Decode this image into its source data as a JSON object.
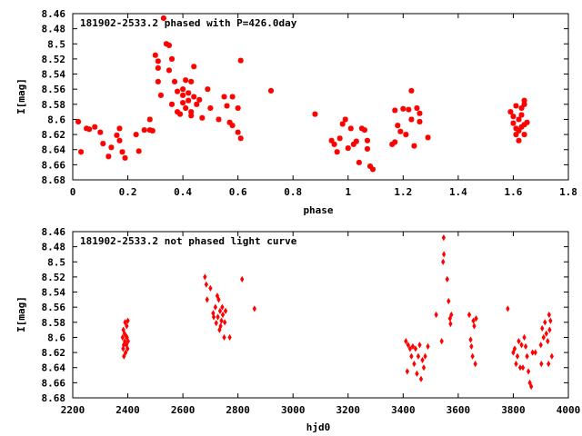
{
  "chart_data": [
    {
      "type": "scatter",
      "title": "181902-2533.2 phased with P=426.0day",
      "xlabel": "phase",
      "ylabel": "I[mag]",
      "xlim": [
        0,
        1.8
      ],
      "ylim": [
        8.46,
        8.68
      ],
      "y_inverted": true,
      "xticks": [
        "0",
        "0.2",
        "0.4",
        "0.6",
        "0.8",
        "1",
        "1.2",
        "1.4",
        "1.6",
        "1.8"
      ],
      "yticks": [
        "8.46",
        "8.48",
        "8.5",
        "8.52",
        "8.54",
        "8.56",
        "8.58",
        "8.6",
        "8.62",
        "8.64",
        "8.66",
        "8.68"
      ],
      "marker_color": "#ff0000",
      "marker": "star",
      "grid": false,
      "points": [
        [
          0.02,
          8.603
        ],
        [
          0.03,
          8.643
        ],
        [
          0.05,
          8.612
        ],
        [
          0.06,
          8.613
        ],
        [
          0.08,
          8.61
        ],
        [
          0.1,
          8.617
        ],
        [
          0.11,
          8.632
        ],
        [
          0.13,
          8.649
        ],
        [
          0.14,
          8.637
        ],
        [
          0.16,
          8.621
        ],
        [
          0.17,
          8.628
        ],
        [
          0.17,
          8.612
        ],
        [
          0.18,
          8.643
        ],
        [
          0.19,
          8.651
        ],
        [
          0.23,
          8.62
        ],
        [
          0.24,
          8.642
        ],
        [
          0.26,
          8.614
        ],
        [
          0.28,
          8.6
        ],
        [
          0.28,
          8.614
        ],
        [
          0.29,
          8.615
        ],
        [
          0.3,
          8.515
        ],
        [
          0.31,
          8.523
        ],
        [
          0.31,
          8.532
        ],
        [
          0.31,
          8.55
        ],
        [
          0.32,
          8.568
        ],
        [
          0.33,
          8.466
        ],
        [
          0.34,
          8.5
        ],
        [
          0.35,
          8.502
        ],
        [
          0.35,
          8.535
        ],
        [
          0.36,
          8.52
        ],
        [
          0.36,
          8.58
        ],
        [
          0.37,
          8.55
        ],
        [
          0.38,
          8.563
        ],
        [
          0.38,
          8.59
        ],
        [
          0.39,
          8.593
        ],
        [
          0.4,
          8.56
        ],
        [
          0.4,
          8.568
        ],
        [
          0.4,
          8.578
        ],
        [
          0.41,
          8.585
        ],
        [
          0.41,
          8.548
        ],
        [
          0.42,
          8.565
        ],
        [
          0.42,
          8.575
        ],
        [
          0.43,
          8.59
        ],
        [
          0.43,
          8.595
        ],
        [
          0.43,
          8.55
        ],
        [
          0.44,
          8.53
        ],
        [
          0.44,
          8.57
        ],
        [
          0.45,
          8.58
        ],
        [
          0.46,
          8.574
        ],
        [
          0.47,
          8.598
        ],
        [
          0.49,
          8.56
        ],
        [
          0.5,
          8.585
        ],
        [
          0.53,
          8.6
        ],
        [
          0.55,
          8.57
        ],
        [
          0.56,
          8.582
        ],
        [
          0.57,
          8.604
        ],
        [
          0.58,
          8.608
        ],
        [
          0.58,
          8.57
        ],
        [
          0.6,
          8.585
        ],
        [
          0.6,
          8.617
        ],
        [
          0.61,
          8.625
        ],
        [
          0.61,
          8.522
        ],
        [
          0.72,
          8.562
        ],
        [
          0.88,
          8.593
        ],
        [
          0.94,
          8.628
        ],
        [
          0.95,
          8.633
        ],
        [
          0.96,
          8.643
        ],
        [
          0.97,
          8.625
        ],
        [
          0.98,
          8.606
        ],
        [
          0.99,
          8.6
        ],
        [
          1,
          8.638
        ],
        [
          1.01,
          8.612
        ],
        [
          1.02,
          8.633
        ],
        [
          1.03,
          8.629
        ],
        [
          1.04,
          8.657
        ],
        [
          1.05,
          8.612
        ],
        [
          1.06,
          8.614
        ],
        [
          1.07,
          8.628
        ],
        [
          1.07,
          8.639
        ],
        [
          1.08,
          8.662
        ],
        [
          1.09,
          8.666
        ],
        [
          1.16,
          8.633
        ],
        [
          1.17,
          8.63
        ],
        [
          1.17,
          8.588
        ],
        [
          1.18,
          8.608
        ],
        [
          1.19,
          8.616
        ],
        [
          1.2,
          8.586
        ],
        [
          1.21,
          8.62
        ],
        [
          1.22,
          8.587
        ],
        [
          1.23,
          8.6
        ],
        [
          1.23,
          8.562
        ],
        [
          1.24,
          8.635
        ],
        [
          1.25,
          8.585
        ],
        [
          1.26,
          8.592
        ],
        [
          1.26,
          8.603
        ],
        [
          1.29,
          8.624
        ],
        [
          1.59,
          8.59
        ],
        [
          1.6,
          8.596
        ],
        [
          1.6,
          8.605
        ],
        [
          1.61,
          8.612
        ],
        [
          1.61,
          8.62
        ],
        [
          1.61,
          8.582
        ],
        [
          1.62,
          8.6
        ],
        [
          1.62,
          8.628
        ],
        [
          1.63,
          8.594
        ],
        [
          1.63,
          8.585
        ],
        [
          1.63,
          8.61
        ],
        [
          1.64,
          8.607
        ],
        [
          1.64,
          8.58
        ],
        [
          1.64,
          8.575
        ],
        [
          1.64,
          8.62
        ],
        [
          1.65,
          8.604
        ],
        [
          1.62,
          8.615
        ]
      ]
    },
    {
      "type": "scatter",
      "title": "181902-2533.2 not phased light curve",
      "xlabel": "hjd0",
      "ylabel": "I[mag]",
      "xlim": [
        2200,
        4000
      ],
      "ylim": [
        8.46,
        8.68
      ],
      "y_inverted": true,
      "xticks": [
        "2200",
        "2400",
        "2600",
        "2800",
        "3000",
        "3200",
        "3400",
        "3600",
        "3800",
        "4000"
      ],
      "yticks": [
        "8.46",
        "8.48",
        "8.5",
        "8.52",
        "8.54",
        "8.56",
        "8.58",
        "8.6",
        "8.62",
        "8.64",
        "8.66",
        "8.68"
      ],
      "marker_color": "#ff0000",
      "marker": "diamond",
      "grid": false,
      "points": [
        [
          2381,
          8.6
        ],
        [
          2383,
          8.615
        ],
        [
          2384,
          8.59
        ],
        [
          2385,
          8.61
        ],
        [
          2386,
          8.625
        ],
        [
          2388,
          8.595
        ],
        [
          2389,
          8.605
        ],
        [
          2390,
          8.58
        ],
        [
          2392,
          8.62
        ],
        [
          2393,
          8.598
        ],
        [
          2395,
          8.61
        ],
        [
          2396,
          8.585
        ],
        [
          2397,
          8.6
        ],
        [
          2399,
          8.615
        ],
        [
          2400,
          8.578
        ],
        [
          2401,
          8.605
        ],
        [
          2680,
          8.52
        ],
        [
          2685,
          8.53
        ],
        [
          2688,
          8.55
        ],
        [
          2700,
          8.535
        ],
        [
          2710,
          8.568
        ],
        [
          2712,
          8.573
        ],
        [
          2718,
          8.56
        ],
        [
          2721,
          8.581
        ],
        [
          2725,
          8.545
        ],
        [
          2727,
          8.573
        ],
        [
          2730,
          8.55
        ],
        [
          2733,
          8.59
        ],
        [
          2735,
          8.565
        ],
        [
          2737,
          8.585
        ],
        [
          2740,
          8.578
        ],
        [
          2743,
          8.56
        ],
        [
          2745,
          8.57
        ],
        [
          2750,
          8.6
        ],
        [
          2752,
          8.58
        ],
        [
          2755,
          8.565
        ],
        [
          2770,
          8.6
        ],
        [
          2815,
          8.523
        ],
        [
          2860,
          8.562
        ],
        [
          3410,
          8.605
        ],
        [
          3415,
          8.645
        ],
        [
          3418,
          8.61
        ],
        [
          3425,
          8.615
        ],
        [
          3430,
          8.625
        ],
        [
          3435,
          8.612
        ],
        [
          3440,
          8.635
        ],
        [
          3445,
          8.615
        ],
        [
          3450,
          8.648
        ],
        [
          3455,
          8.625
        ],
        [
          3460,
          8.61
        ],
        [
          3465,
          8.655
        ],
        [
          3470,
          8.63
        ],
        [
          3475,
          8.64
        ],
        [
          3480,
          8.625
        ],
        [
          3490,
          8.612
        ],
        [
          3520,
          8.57
        ],
        [
          3540,
          8.605
        ],
        [
          3545,
          8.5
        ],
        [
          3547,
          8.468
        ],
        [
          3548,
          8.49
        ],
        [
          3560,
          8.523
        ],
        [
          3565,
          8.552
        ],
        [
          3570,
          8.575
        ],
        [
          3572,
          8.582
        ],
        [
          3575,
          8.57
        ],
        [
          3640,
          8.57
        ],
        [
          3645,
          8.603
        ],
        [
          3648,
          8.612
        ],
        [
          3652,
          8.625
        ],
        [
          3655,
          8.578
        ],
        [
          3658,
          8.585
        ],
        [
          3662,
          8.635
        ],
        [
          3665,
          8.575
        ],
        [
          3780,
          8.562
        ],
        [
          3800,
          8.62
        ],
        [
          3805,
          8.615
        ],
        [
          3810,
          8.635
        ],
        [
          3815,
          8.625
        ],
        [
          3820,
          8.605
        ],
        [
          3825,
          8.64
        ],
        [
          3830,
          8.61
        ],
        [
          3835,
          8.64
        ],
        [
          3840,
          8.6
        ],
        [
          3845,
          8.612
        ],
        [
          3850,
          8.625
        ],
        [
          3855,
          8.645
        ],
        [
          3860,
          8.66
        ],
        [
          3865,
          8.665
        ],
        [
          3870,
          8.62
        ],
        [
          3880,
          8.62
        ],
        [
          3900,
          8.61
        ],
        [
          3902,
          8.635
        ],
        [
          3905,
          8.588
        ],
        [
          3910,
          8.6
        ],
        [
          3915,
          8.58
        ],
        [
          3920,
          8.595
        ],
        [
          3925,
          8.605
        ],
        [
          3928,
          8.635
        ],
        [
          3930,
          8.57
        ],
        [
          3932,
          8.59
        ],
        [
          3935,
          8.578
        ],
        [
          3940,
          8.625
        ]
      ]
    }
  ]
}
